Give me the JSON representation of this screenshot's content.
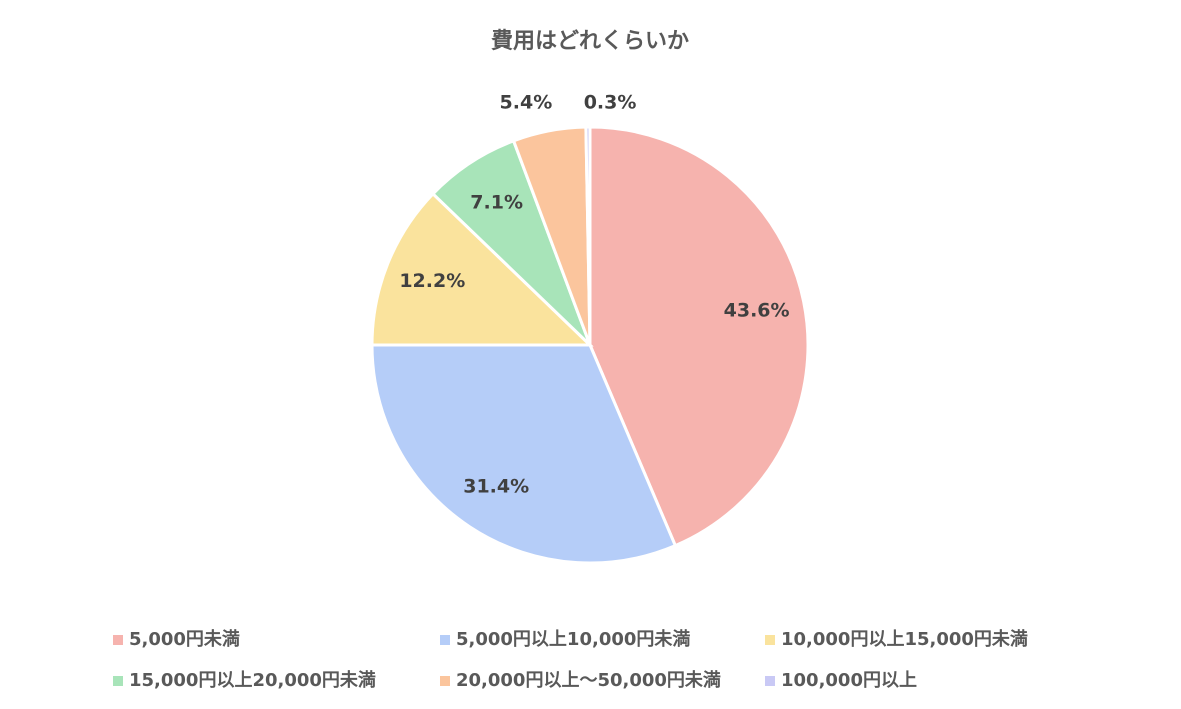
{
  "chart_data": {
    "type": "pie",
    "title": "費用はどれくらいか",
    "categories": [
      "5,000円未満",
      "5,000円以上10,000円未満",
      "10,000円以上15,000円未満",
      "15,000円以上20,000円未満",
      "20,000円以上～50,000円未満",
      "100,000円以上"
    ],
    "values": [
      43.6,
      31.4,
      12.2,
      7.1,
      5.4,
      0.3
    ],
    "value_labels": [
      "43.6%",
      "31.4%",
      "12.2%",
      "7.1%",
      "5.4%",
      "0.3%"
    ],
    "colors": [
      "#f6b3ae",
      "#b5cdf8",
      "#fae39d",
      "#a8e4b9",
      "#fbc59d",
      "#c9c9f5"
    ],
    "legend": "bottom"
  }
}
